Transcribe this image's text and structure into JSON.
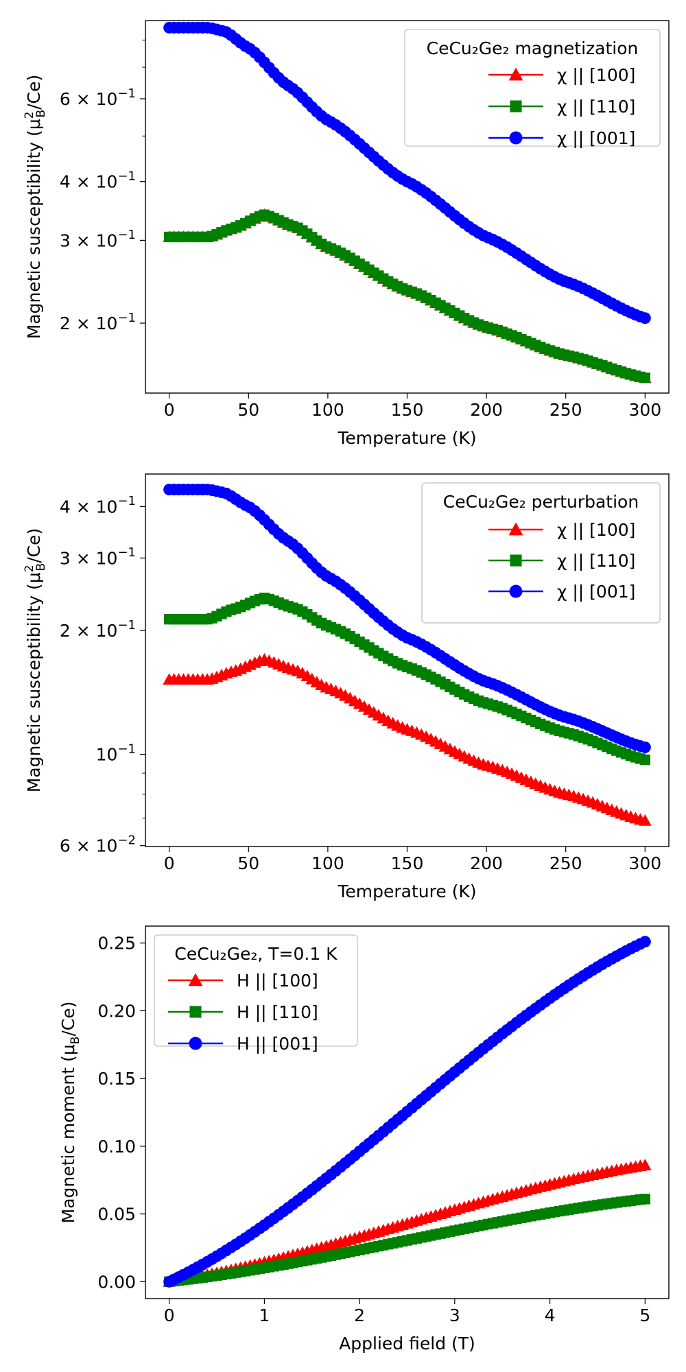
{
  "chart_data": [
    {
      "type": "line",
      "panel": "magnetization",
      "xlabel": "Temperature (K)",
      "ylabel": "Magnetic susceptibility (μ_B^2/Ce)",
      "yscale": "log",
      "xlim": [
        -15,
        315
      ],
      "ylim": [
        0.142,
        0.88
      ],
      "xticks": [
        0,
        50,
        100,
        150,
        200,
        250,
        300
      ],
      "xtick_labels": [
        "0",
        "50",
        "100",
        "150",
        "200",
        "250",
        "300"
      ],
      "yticks": [
        0.2,
        0.3,
        0.4,
        0.6
      ],
      "ytick_labels": [
        "2 × 10^-1",
        "3 × 10^-1",
        "4 × 10^-1",
        "6 × 10^-1"
      ],
      "legend": {
        "title": "CeCu₂Ge₂ magnetization",
        "placement": "top-right"
      },
      "x": {
        "start": 0,
        "end": 300,
        "step": 3
      },
      "series": [
        {
          "name": "χ || [100]",
          "color": "#ff0000",
          "marker": "triangle",
          "knots_x": [
            0,
            25,
            40,
            60,
            80,
            100,
            150,
            200,
            250,
            300
          ],
          "knots_y": [
            0.305,
            0.305,
            0.318,
            0.34,
            0.32,
            0.29,
            0.235,
            0.196,
            0.171,
            0.153
          ]
        },
        {
          "name": "χ || [110]",
          "color": "#008000",
          "marker": "square",
          "knots_x": [
            0,
            25,
            40,
            60,
            80,
            100,
            150,
            200,
            250,
            300
          ],
          "knots_y": [
            0.305,
            0.305,
            0.318,
            0.34,
            0.32,
            0.29,
            0.235,
            0.196,
            0.171,
            0.153
          ]
        },
        {
          "name": "χ || [001]",
          "color": "#0000ff",
          "marker": "circle",
          "knots_x": [
            0,
            25,
            35,
            50,
            75,
            100,
            150,
            200,
            250,
            300
          ],
          "knots_y": [
            0.85,
            0.85,
            0.835,
            0.77,
            0.64,
            0.54,
            0.4,
            0.305,
            0.245,
            0.205
          ]
        }
      ]
    },
    {
      "type": "line",
      "panel": "perturbation",
      "xlabel": "Temperature (K)",
      "ylabel": "Magnetic susceptibility (μ_B^2/Ce)",
      "yscale": "log",
      "xlim": [
        -15,
        315
      ],
      "ylim": [
        0.0597,
        0.48
      ],
      "xticks": [
        0,
        50,
        100,
        150,
        200,
        250,
        300
      ],
      "xtick_labels": [
        "0",
        "50",
        "100",
        "150",
        "200",
        "250",
        "300"
      ],
      "yticks": [
        0.06,
        0.1,
        0.2,
        0.3,
        0.4
      ],
      "ytick_labels": [
        "6 × 10^-2",
        "10^-1",
        "2 × 10^-1",
        "3 × 10^-1",
        "4 × 10^-1"
      ],
      "legend": {
        "title": "CeCu₂Ge₂ perturbation",
        "placement": "top-right"
      },
      "x": {
        "start": 0,
        "end": 300,
        "step": 3
      },
      "series": [
        {
          "name": "χ || [100]",
          "color": "#ff0000",
          "marker": "triangle",
          "knots_x": [
            0,
            25,
            40,
            60,
            80,
            100,
            150,
            200,
            250,
            300
          ],
          "knots_y": [
            0.152,
            0.152,
            0.159,
            0.17,
            0.16,
            0.145,
            0.115,
            0.094,
            0.08,
            0.069
          ]
        },
        {
          "name": "χ || [110]",
          "color": "#008000",
          "marker": "square",
          "knots_x": [
            0,
            25,
            40,
            60,
            80,
            100,
            150,
            200,
            250,
            300
          ],
          "knots_y": [
            0.213,
            0.213,
            0.225,
            0.24,
            0.226,
            0.205,
            0.163,
            0.133,
            0.113,
            0.097
          ]
        },
        {
          "name": "χ || [001]",
          "color": "#0000ff",
          "marker": "circle",
          "knots_x": [
            0,
            25,
            35,
            50,
            75,
            100,
            150,
            200,
            250,
            300
          ],
          "knots_y": [
            0.44,
            0.44,
            0.432,
            0.4,
            0.33,
            0.27,
            0.192,
            0.15,
            0.123,
            0.104
          ]
        }
      ]
    },
    {
      "type": "line",
      "panel": "field",
      "xlabel": "Applied field (T)",
      "ylabel": "Magnetic moment (μ_B/Ce)",
      "yscale": "linear",
      "xlim": [
        -0.25,
        5.25
      ],
      "ylim": [
        -0.0125,
        0.2625
      ],
      "xticks": [
        0,
        1,
        2,
        3,
        4,
        5
      ],
      "xtick_labels": [
        "0",
        "1",
        "2",
        "3",
        "4",
        "5"
      ],
      "yticks": [
        0,
        0.05,
        0.1,
        0.15,
        0.2,
        0.25
      ],
      "ytick_labels": [
        "0.00",
        "0.05",
        "0.10",
        "0.15",
        "0.20",
        "0.25"
      ],
      "legend": {
        "title": "CeCu₂Ge₂, T=0.1 K",
        "placement": "top-left"
      },
      "x": {
        "start": 0,
        "end": 5,
        "step": 0.05
      },
      "series": [
        {
          "name": "H || [100]",
          "color": "#ff0000",
          "marker": "triangle",
          "knots_x": [
            0,
            5
          ],
          "knots_y": [
            0,
            0.086
          ]
        },
        {
          "name": "H || [110]",
          "color": "#008000",
          "marker": "square",
          "knots_x": [
            0,
            5
          ],
          "knots_y": [
            0,
            0.061
          ]
        },
        {
          "name": "H || [001]",
          "color": "#0000ff",
          "marker": "circle",
          "knots_x": [
            0,
            5
          ],
          "knots_y": [
            0,
            0.251
          ]
        }
      ]
    }
  ]
}
